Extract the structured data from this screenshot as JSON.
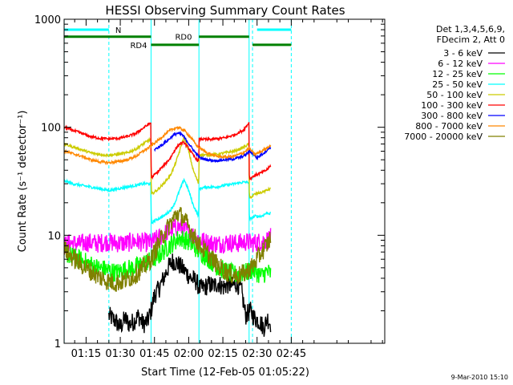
{
  "chart_data": {
    "type": "line",
    "title": "HESSI Observing Summary Count Rates",
    "xlabel": "Start Time (12-Feb-05 01:05:22)",
    "ylabel": "Count Rate (s⁻¹ detector⁻¹)",
    "yscale": "log",
    "ylim": [
      1,
      1000
    ],
    "xlim_minutes": [
      5.37,
      146.0
    ],
    "x_ticks": [
      {
        "label": "01:15",
        "minutes": 15
      },
      {
        "label": "01:30",
        "minutes": 30
      },
      {
        "label": "01:45",
        "minutes": 45
      },
      {
        "label": "02:00",
        "minutes": 60
      },
      {
        "label": "02:15",
        "minutes": 75
      },
      {
        "label": "02:30",
        "minutes": 90
      },
      {
        "label": "02:45",
        "minutes": 105
      }
    ],
    "y_ticks": [
      {
        "label": "1",
        "value": 1
      },
      {
        "label": "10",
        "value": 10
      },
      {
        "label": "100",
        "value": 100
      },
      {
        "label": "1000",
        "value": 1000
      }
    ],
    "legend_title": [
      "Det 1,3,4,5,6,9,",
      "FDecim 2, Att 0"
    ],
    "legend_position": "right",
    "series": [
      {
        "name": "3 - 6 keV",
        "color": "#000000",
        "x": [
          25,
          28,
          30,
          32,
          34,
          36,
          38,
          40,
          42,
          43.5,
          45,
          47,
          49,
          51,
          53,
          55,
          57,
          59,
          61,
          63,
          65,
          67,
          69,
          71,
          73,
          75,
          77,
          79,
          81,
          83,
          85,
          87,
          89,
          91,
          93,
          94.5,
          96
        ],
        "y": [
          1.8,
          1.6,
          1.4,
          1.7,
          1.5,
          1.6,
          1.8,
          1.5,
          1.6,
          2.0,
          2.8,
          3.2,
          4.0,
          5.0,
          5.8,
          5.5,
          5.0,
          4.5,
          4.0,
          3.8,
          3.2,
          3.3,
          3.5,
          3.4,
          3.6,
          3.3,
          3.5,
          3.4,
          3.6,
          3.2,
          1.8,
          2.0,
          1.7,
          1.6,
          1.4,
          1.7,
          1.5
        ]
      },
      {
        "name": "6 - 12 keV",
        "color": "#ff00ff",
        "x": [
          5.4,
          8,
          12,
          16,
          20,
          24,
          28,
          32,
          36,
          40,
          43.5,
          47,
          50,
          53,
          56,
          59,
          62,
          65,
          69,
          73,
          77,
          81,
          85,
          88,
          90,
          92,
          94,
          96
        ],
        "y": [
          8.0,
          8.5,
          8.3,
          8.6,
          8.4,
          8.7,
          8.5,
          8.4,
          8.8,
          8.6,
          8.5,
          9.5,
          10.5,
          11.5,
          12.0,
          11.0,
          10.0,
          9.0,
          8.5,
          8.3,
          8.6,
          8.4,
          8.7,
          8.5,
          8.6,
          8.8,
          9.0,
          9.5
        ]
      },
      {
        "name": "12 - 25 keV",
        "color": "#00ff00",
        "x": [
          5.4,
          8,
          12,
          16,
          20,
          24,
          28,
          32,
          36,
          40,
          43.5,
          47,
          50,
          53,
          56,
          59,
          62,
          65,
          69,
          73,
          77,
          81,
          85,
          88,
          90,
          92,
          94,
          96
        ],
        "y": [
          7.0,
          6.5,
          6.0,
          5.5,
          5.0,
          4.8,
          4.5,
          4.8,
          5.0,
          5.5,
          5.8,
          6.5,
          7.5,
          8.5,
          9.5,
          9.0,
          8.0,
          7.0,
          6.0,
          5.0,
          4.6,
          4.3,
          4.5,
          4.8,
          4.5,
          4.2,
          4.6,
          4.4
        ]
      },
      {
        "name": "25 - 50 keV",
        "color": "#00ffff",
        "x": [
          5.4,
          9,
          13,
          17,
          21,
          25,
          29,
          33,
          37,
          40,
          43.4,
          43.6,
          46,
          49,
          52,
          54,
          56,
          58,
          60,
          62,
          64.4,
          64.6,
          68,
          72,
          76,
          80,
          84,
          86.4,
          86.6,
          89,
          92,
          94,
          96
        ],
        "y": [
          32,
          30,
          29,
          28,
          27,
          26,
          27,
          28,
          29,
          30,
          30,
          13,
          14,
          15,
          17,
          20,
          26,
          33,
          26,
          19,
          15,
          27,
          28,
          28,
          29,
          30,
          31,
          31,
          14,
          15,
          15,
          16,
          16
        ]
      },
      {
        "name": "50 - 100 keV",
        "color": "#cccc00",
        "x": [
          5.4,
          9,
          13,
          17,
          21,
          25,
          29,
          33,
          37,
          40,
          43.4,
          43.6,
          46,
          49,
          52,
          54,
          56,
          58,
          60,
          62,
          64.4,
          64.6,
          68,
          72,
          76,
          80,
          84,
          86.4,
          86.6,
          89,
          92,
          94,
          96
        ],
        "y": [
          70,
          66,
          62,
          58,
          56,
          55,
          56,
          58,
          63,
          70,
          78,
          24,
          26,
          30,
          36,
          45,
          60,
          82,
          60,
          40,
          30,
          56,
          55,
          56,
          58,
          60,
          65,
          70,
          22,
          24,
          25,
          26,
          27
        ]
      },
      {
        "name": "100 - 300 keV",
        "color": "#ff0000",
        "x": [
          5.4,
          9,
          13,
          17,
          21,
          25,
          29,
          33,
          37,
          40,
          43.4,
          43.6,
          46,
          49,
          52,
          54,
          56,
          58,
          60,
          62,
          64.4,
          64.6,
          68,
          72,
          76,
          80,
          84,
          86.4,
          86.6,
          89,
          92,
          94,
          96
        ],
        "y": [
          100,
          94,
          88,
          82,
          79,
          78,
          79,
          82,
          88,
          98,
          110,
          34,
          38,
          44,
          52,
          62,
          70,
          72,
          64,
          55,
          48,
          78,
          77,
          78,
          80,
          85,
          94,
          110,
          33,
          36,
          38,
          40,
          44
        ]
      },
      {
        "name": "300 - 800 keV",
        "color": "#0000ff",
        "x": [
          45,
          48,
          51,
          53,
          55,
          57,
          59,
          61,
          63,
          65,
          68,
          72,
          76,
          80,
          84,
          87,
          90,
          93,
          96
        ],
        "y": [
          62,
          68,
          76,
          84,
          88,
          86,
          76,
          66,
          58,
          52,
          50,
          49,
          50,
          51,
          54,
          60,
          52,
          58,
          66
        ]
      },
      {
        "name": "800 - 7000 keV",
        "color": "#ff8800",
        "x": [
          5.4,
          9,
          13,
          17,
          21,
          25,
          29,
          33,
          37,
          40,
          43,
          46,
          49,
          52,
          55,
          58,
          61,
          64,
          68,
          72,
          76,
          80,
          84,
          86.5,
          89,
          92,
          94,
          96
        ],
        "y": [
          60,
          57,
          54,
          50,
          48,
          47,
          48,
          50,
          54,
          60,
          66,
          74,
          84,
          94,
          100,
          94,
          80,
          66,
          58,
          54,
          53,
          54,
          58,
          64,
          56,
          60,
          64,
          68
        ]
      },
      {
        "name": "7000 - 20000 keV",
        "color": "#808000",
        "x": [
          5.4,
          8,
          12,
          16,
          20,
          24,
          28,
          32,
          36,
          40,
          43.5,
          47,
          50,
          53,
          55,
          57,
          59,
          62,
          65,
          69,
          73,
          77,
          81,
          85,
          88,
          90,
          92,
          94,
          96
        ],
        "y": [
          7.5,
          6.5,
          5.5,
          4.8,
          4.2,
          3.8,
          3.6,
          3.8,
          4.2,
          5.0,
          6.0,
          8.5,
          11,
          14,
          16,
          15,
          13,
          10,
          8.0,
          6.5,
          5.2,
          4.5,
          4.2,
          4.5,
          5.2,
          6.0,
          7.0,
          8.0,
          9.5
        ]
      }
    ],
    "state_bars": [
      {
        "label": "N",
        "color": "#00ffff",
        "value": 800,
        "segments": [
          [
            5.4,
            25
          ],
          [
            90,
            105
          ]
        ]
      },
      {
        "label": "RD0",
        "color": "#008000",
        "value": 690,
        "segments": [
          [
            5.4,
            43.5
          ],
          [
            64.5,
            86.5
          ]
        ]
      },
      {
        "label": "RD4",
        "color": "#008000",
        "value": 580,
        "segments": [
          [
            43.5,
            64.5
          ],
          [
            88,
            105
          ]
        ]
      }
    ],
    "vertical_lines": [
      {
        "minutes": 5.4,
        "color": "#00ffff",
        "style": "solid"
      },
      {
        "minutes": 25,
        "color": "#00ffff",
        "style": "dashed"
      },
      {
        "minutes": 43.5,
        "color": "#00ffff",
        "style": "solid"
      },
      {
        "minutes": 64.5,
        "color": "#00ffff",
        "style": "solid"
      },
      {
        "minutes": 86.5,
        "color": "#00ffff",
        "style": "solid"
      },
      {
        "minutes": 88,
        "color": "#00ffff",
        "style": "dashed"
      },
      {
        "minutes": 105,
        "color": "#00ffff",
        "style": "dashed"
      }
    ],
    "footer_date": "9-Mar-2010 15:10"
  }
}
